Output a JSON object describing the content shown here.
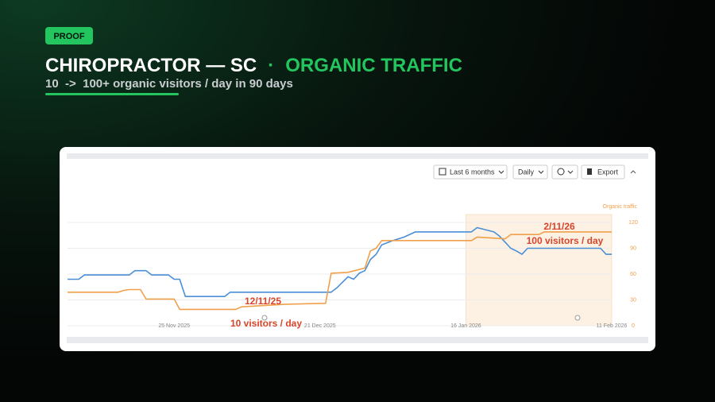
{
  "header": {
    "badge": "PROOF",
    "title": "CHIROPRACTOR — SC",
    "separator": "·",
    "highlight": "ORGANIC TRAFFIC",
    "subtitle": "10  ->  100+ organic visitors / day in 90 days"
  },
  "toolbar": {
    "range": "Last 6 months",
    "interval": "Daily",
    "export": "Export"
  },
  "chart_data": {
    "type": "line",
    "y_label": "Organic traffic",
    "xlim": [
      "2025-11-06",
      "2026-02-11"
    ],
    "xticks": [
      {
        "value": "2025-11-25",
        "label": "25 Nov 2025"
      },
      {
        "value": "2025-12-21",
        "label": "21 Dec 2025"
      },
      {
        "value": "2026-01-16",
        "label": "16 Jan 2026"
      },
      {
        "value": "2026-02-11",
        "label": "11 Feb 2026"
      }
    ],
    "ylim": [
      0,
      120
    ],
    "yticks": [
      0,
      30,
      60,
      90,
      120
    ],
    "grid": true,
    "highlight_range": [
      "2026-01-16",
      "2026-02-11"
    ],
    "series": [
      {
        "color": "#4a8fd6",
        "x": [
          "2025-11-06",
          "2025-11-08",
          "2025-11-09",
          "2025-11-17",
          "2025-11-18",
          "2025-11-20",
          "2025-11-21",
          "2025-11-24",
          "2025-11-25",
          "2025-11-26",
          "2025-11-27",
          "2025-12-04",
          "2025-12-05",
          "2025-12-23",
          "2025-12-24",
          "2025-12-26",
          "2025-12-27",
          "2025-12-28",
          "2025-12-29",
          "2025-12-30",
          "2025-12-31",
          "2026-01-01",
          "2026-01-03",
          "2026-01-05",
          "2026-01-07",
          "2026-01-17",
          "2026-01-18",
          "2026-01-21",
          "2026-01-22",
          "2026-01-24",
          "2026-01-25",
          "2026-01-26",
          "2026-01-27",
          "2026-02-09",
          "2026-02-10",
          "2026-02-11"
        ],
        "values": [
          54,
          54,
          59,
          59,
          64,
          64,
          59,
          59,
          54,
          54,
          34,
          34,
          39,
          39,
          44,
          57,
          54,
          61,
          64,
          77,
          83,
          94,
          99,
          103,
          109,
          109,
          114,
          109,
          104,
          90,
          87,
          83,
          90,
          90,
          83,
          83
        ]
      },
      {
        "color": "#f0a04b",
        "x": [
          "2025-11-06",
          "2025-11-15",
          "2025-11-16",
          "2025-11-17",
          "2025-11-19",
          "2025-11-20",
          "2025-11-25",
          "2025-11-26",
          "2025-12-06",
          "2025-12-07",
          "2025-12-15",
          "2025-12-22",
          "2025-12-23",
          "2025-12-26",
          "2025-12-29",
          "2025-12-30",
          "2025-12-31",
          "2026-01-01",
          "2026-01-17",
          "2026-01-18",
          "2026-01-23",
          "2026-01-24",
          "2026-01-29",
          "2026-01-30",
          "2026-02-11"
        ],
        "values": [
          39,
          39,
          41,
          42,
          42,
          31,
          31,
          19,
          19,
          22,
          25,
          26,
          61,
          62,
          67,
          87,
          90,
          99,
          99,
          103,
          101,
          106,
          106,
          109,
          109
        ]
      }
    ],
    "annotations": [
      "12/11/25",
      "10 visitors / day",
      "2/11/26",
      "100 visitors / day"
    ]
  }
}
